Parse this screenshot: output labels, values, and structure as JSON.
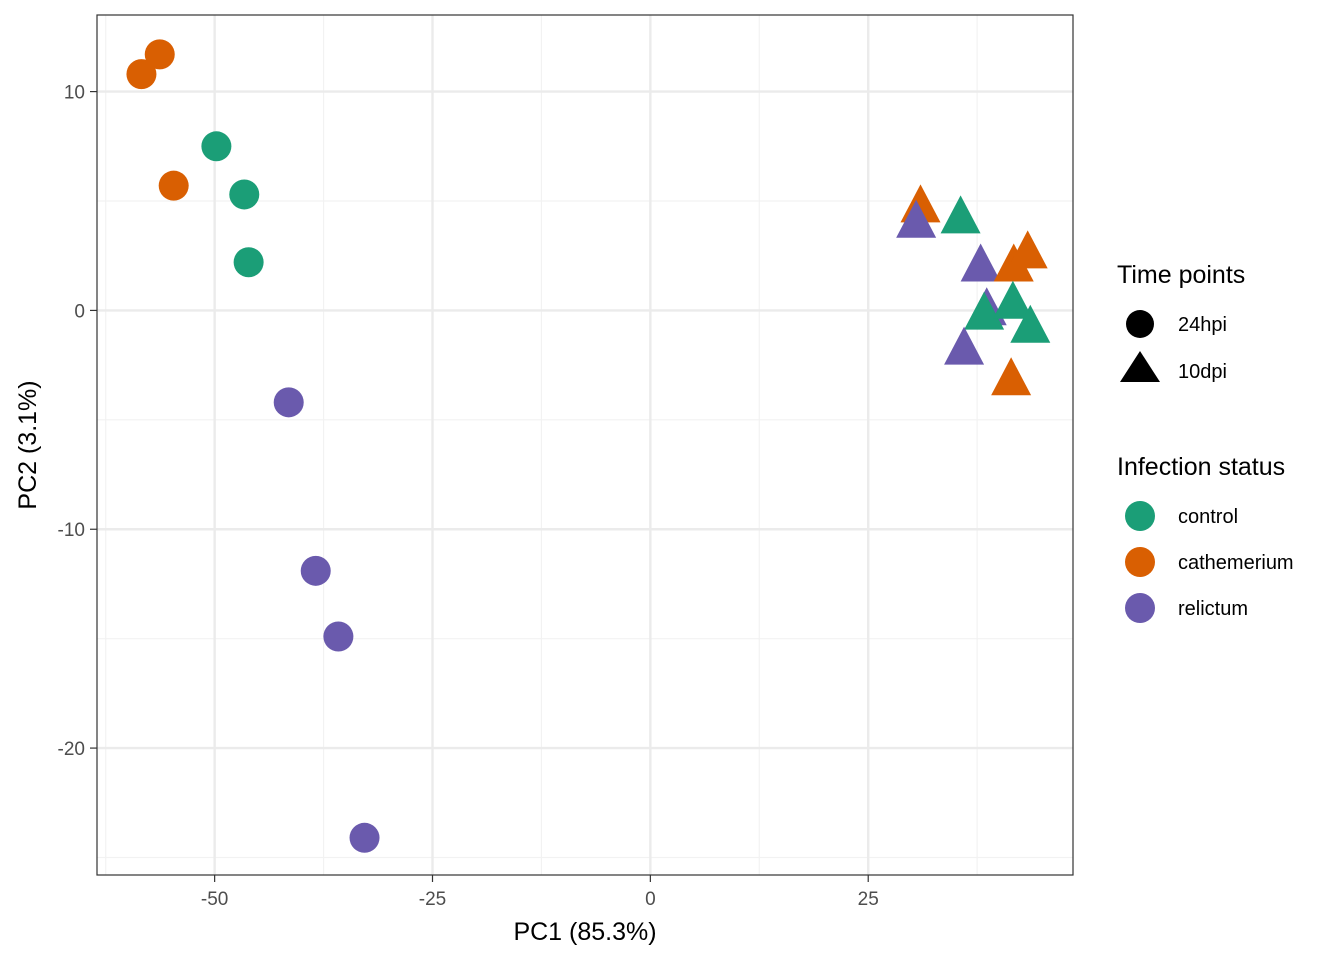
{
  "chart_data": {
    "type": "scatter",
    "xlabel": "PC1 (85.3%)",
    "ylabel": "PC2 (3.1%)",
    "xlim": [
      -63.5,
      48.5
    ],
    "ylim": [
      -25.8,
      13.5
    ],
    "x_ticks": [
      -50,
      -25,
      0,
      25
    ],
    "y_ticks": [
      -20,
      -10,
      0,
      10
    ],
    "x_tick_labels": [
      "-50",
      "-25",
      "0",
      "25"
    ],
    "y_tick_labels": [
      "-20",
      "-10",
      "0",
      "10"
    ],
    "grid": true,
    "legend_position": "right",
    "colors": {
      "control": "#1b9e77",
      "cathemerium": "#d95f02",
      "relictum": "#6a5aad"
    },
    "legend": {
      "shape_title": "Time points",
      "shape_entries": [
        {
          "label": "24hpi",
          "shape": "circle"
        },
        {
          "label": "10dpi",
          "shape": "triangle"
        }
      ],
      "color_title": "Infection status",
      "color_entries": [
        {
          "label": "control",
          "group": "control"
        },
        {
          "label": "cathemerium",
          "group": "cathemerium"
        },
        {
          "label": "relictum",
          "group": "relictum"
        }
      ]
    },
    "points": [
      {
        "x": -58.4,
        "y": 10.8,
        "group": "cathemerium",
        "time": "24hpi"
      },
      {
        "x": -56.3,
        "y": 11.7,
        "group": "cathemerium",
        "time": "24hpi"
      },
      {
        "x": -54.7,
        "y": 5.7,
        "group": "cathemerium",
        "time": "24hpi"
      },
      {
        "x": -49.8,
        "y": 7.5,
        "group": "control",
        "time": "24hpi"
      },
      {
        "x": -46.6,
        "y": 5.3,
        "group": "control",
        "time": "24hpi"
      },
      {
        "x": -46.1,
        "y": 2.2,
        "group": "control",
        "time": "24hpi"
      },
      {
        "x": -41.5,
        "y": -4.2,
        "group": "relictum",
        "time": "24hpi"
      },
      {
        "x": -38.4,
        "y": -11.9,
        "group": "relictum",
        "time": "24hpi"
      },
      {
        "x": -35.8,
        "y": -14.9,
        "group": "relictum",
        "time": "24hpi"
      },
      {
        "x": -32.8,
        "y": -24.1,
        "group": "relictum",
        "time": "24hpi"
      },
      {
        "x": 31.0,
        "y": 4.6,
        "group": "cathemerium",
        "time": "10dpi"
      },
      {
        "x": 30.5,
        "y": 3.9,
        "group": "relictum",
        "time": "10dpi"
      },
      {
        "x": 35.6,
        "y": 4.1,
        "group": "control",
        "time": "10dpi"
      },
      {
        "x": 37.9,
        "y": 1.9,
        "group": "relictum",
        "time": "10dpi"
      },
      {
        "x": 41.7,
        "y": 1.9,
        "group": "cathemerium",
        "time": "10dpi"
      },
      {
        "x": 43.3,
        "y": 2.5,
        "group": "cathemerium",
        "time": "10dpi"
      },
      {
        "x": 38.6,
        "y": -0.1,
        "group": "relictum",
        "time": "10dpi"
      },
      {
        "x": 38.3,
        "y": -0.3,
        "group": "control",
        "time": "10dpi"
      },
      {
        "x": 41.6,
        "y": 0.2,
        "group": "control",
        "time": "10dpi"
      },
      {
        "x": 43.6,
        "y": -0.9,
        "group": "control",
        "time": "10dpi"
      },
      {
        "x": 36.0,
        "y": -1.9,
        "group": "relictum",
        "time": "10dpi"
      },
      {
        "x": 41.4,
        "y": -3.3,
        "group": "cathemerium",
        "time": "10dpi"
      }
    ]
  }
}
